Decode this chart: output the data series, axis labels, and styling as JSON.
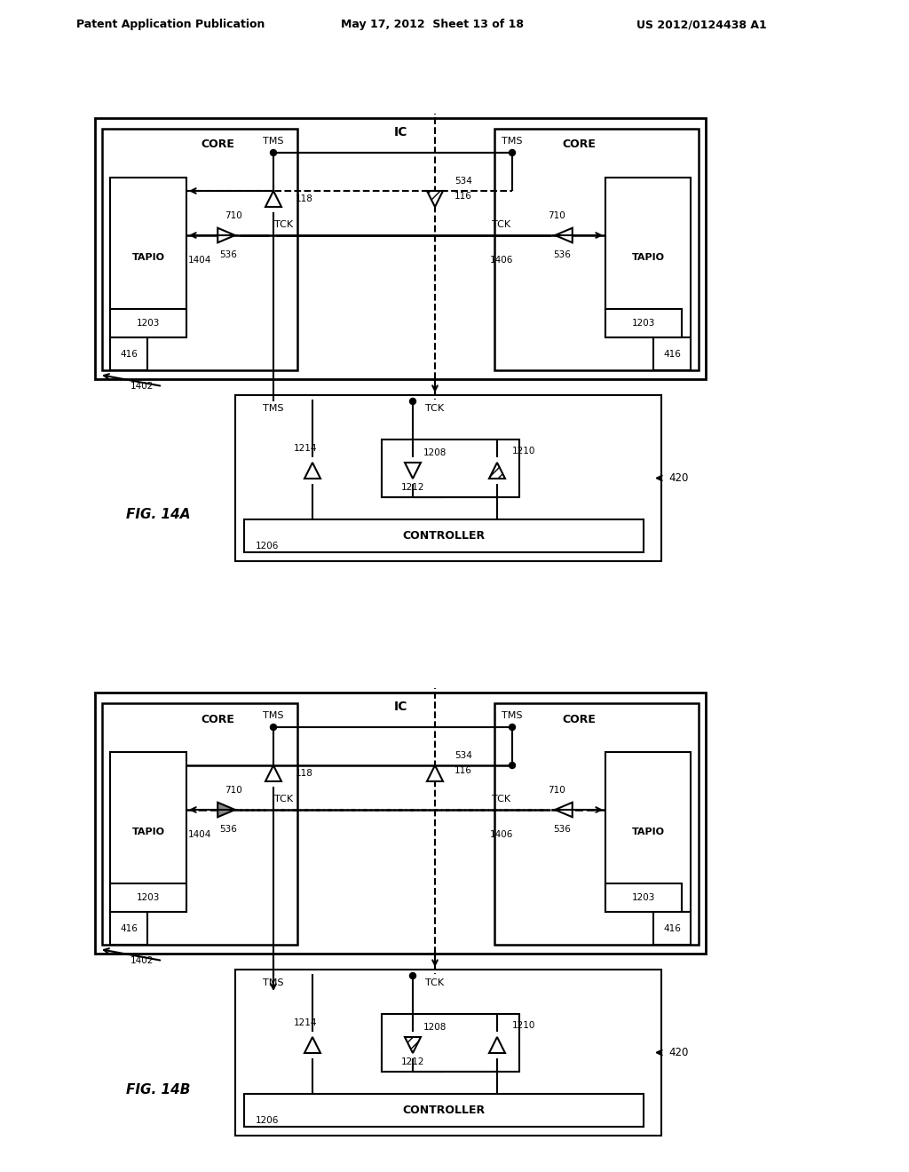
{
  "title_left": "Patent Application Publication",
  "title_mid": "May 17, 2012  Sheet 13 of 18",
  "title_right": "US 2012/0124438 A1",
  "fig_a_label": "FIG. 14A",
  "fig_b_label": "FIG. 14B",
  "bg_color": "#ffffff"
}
